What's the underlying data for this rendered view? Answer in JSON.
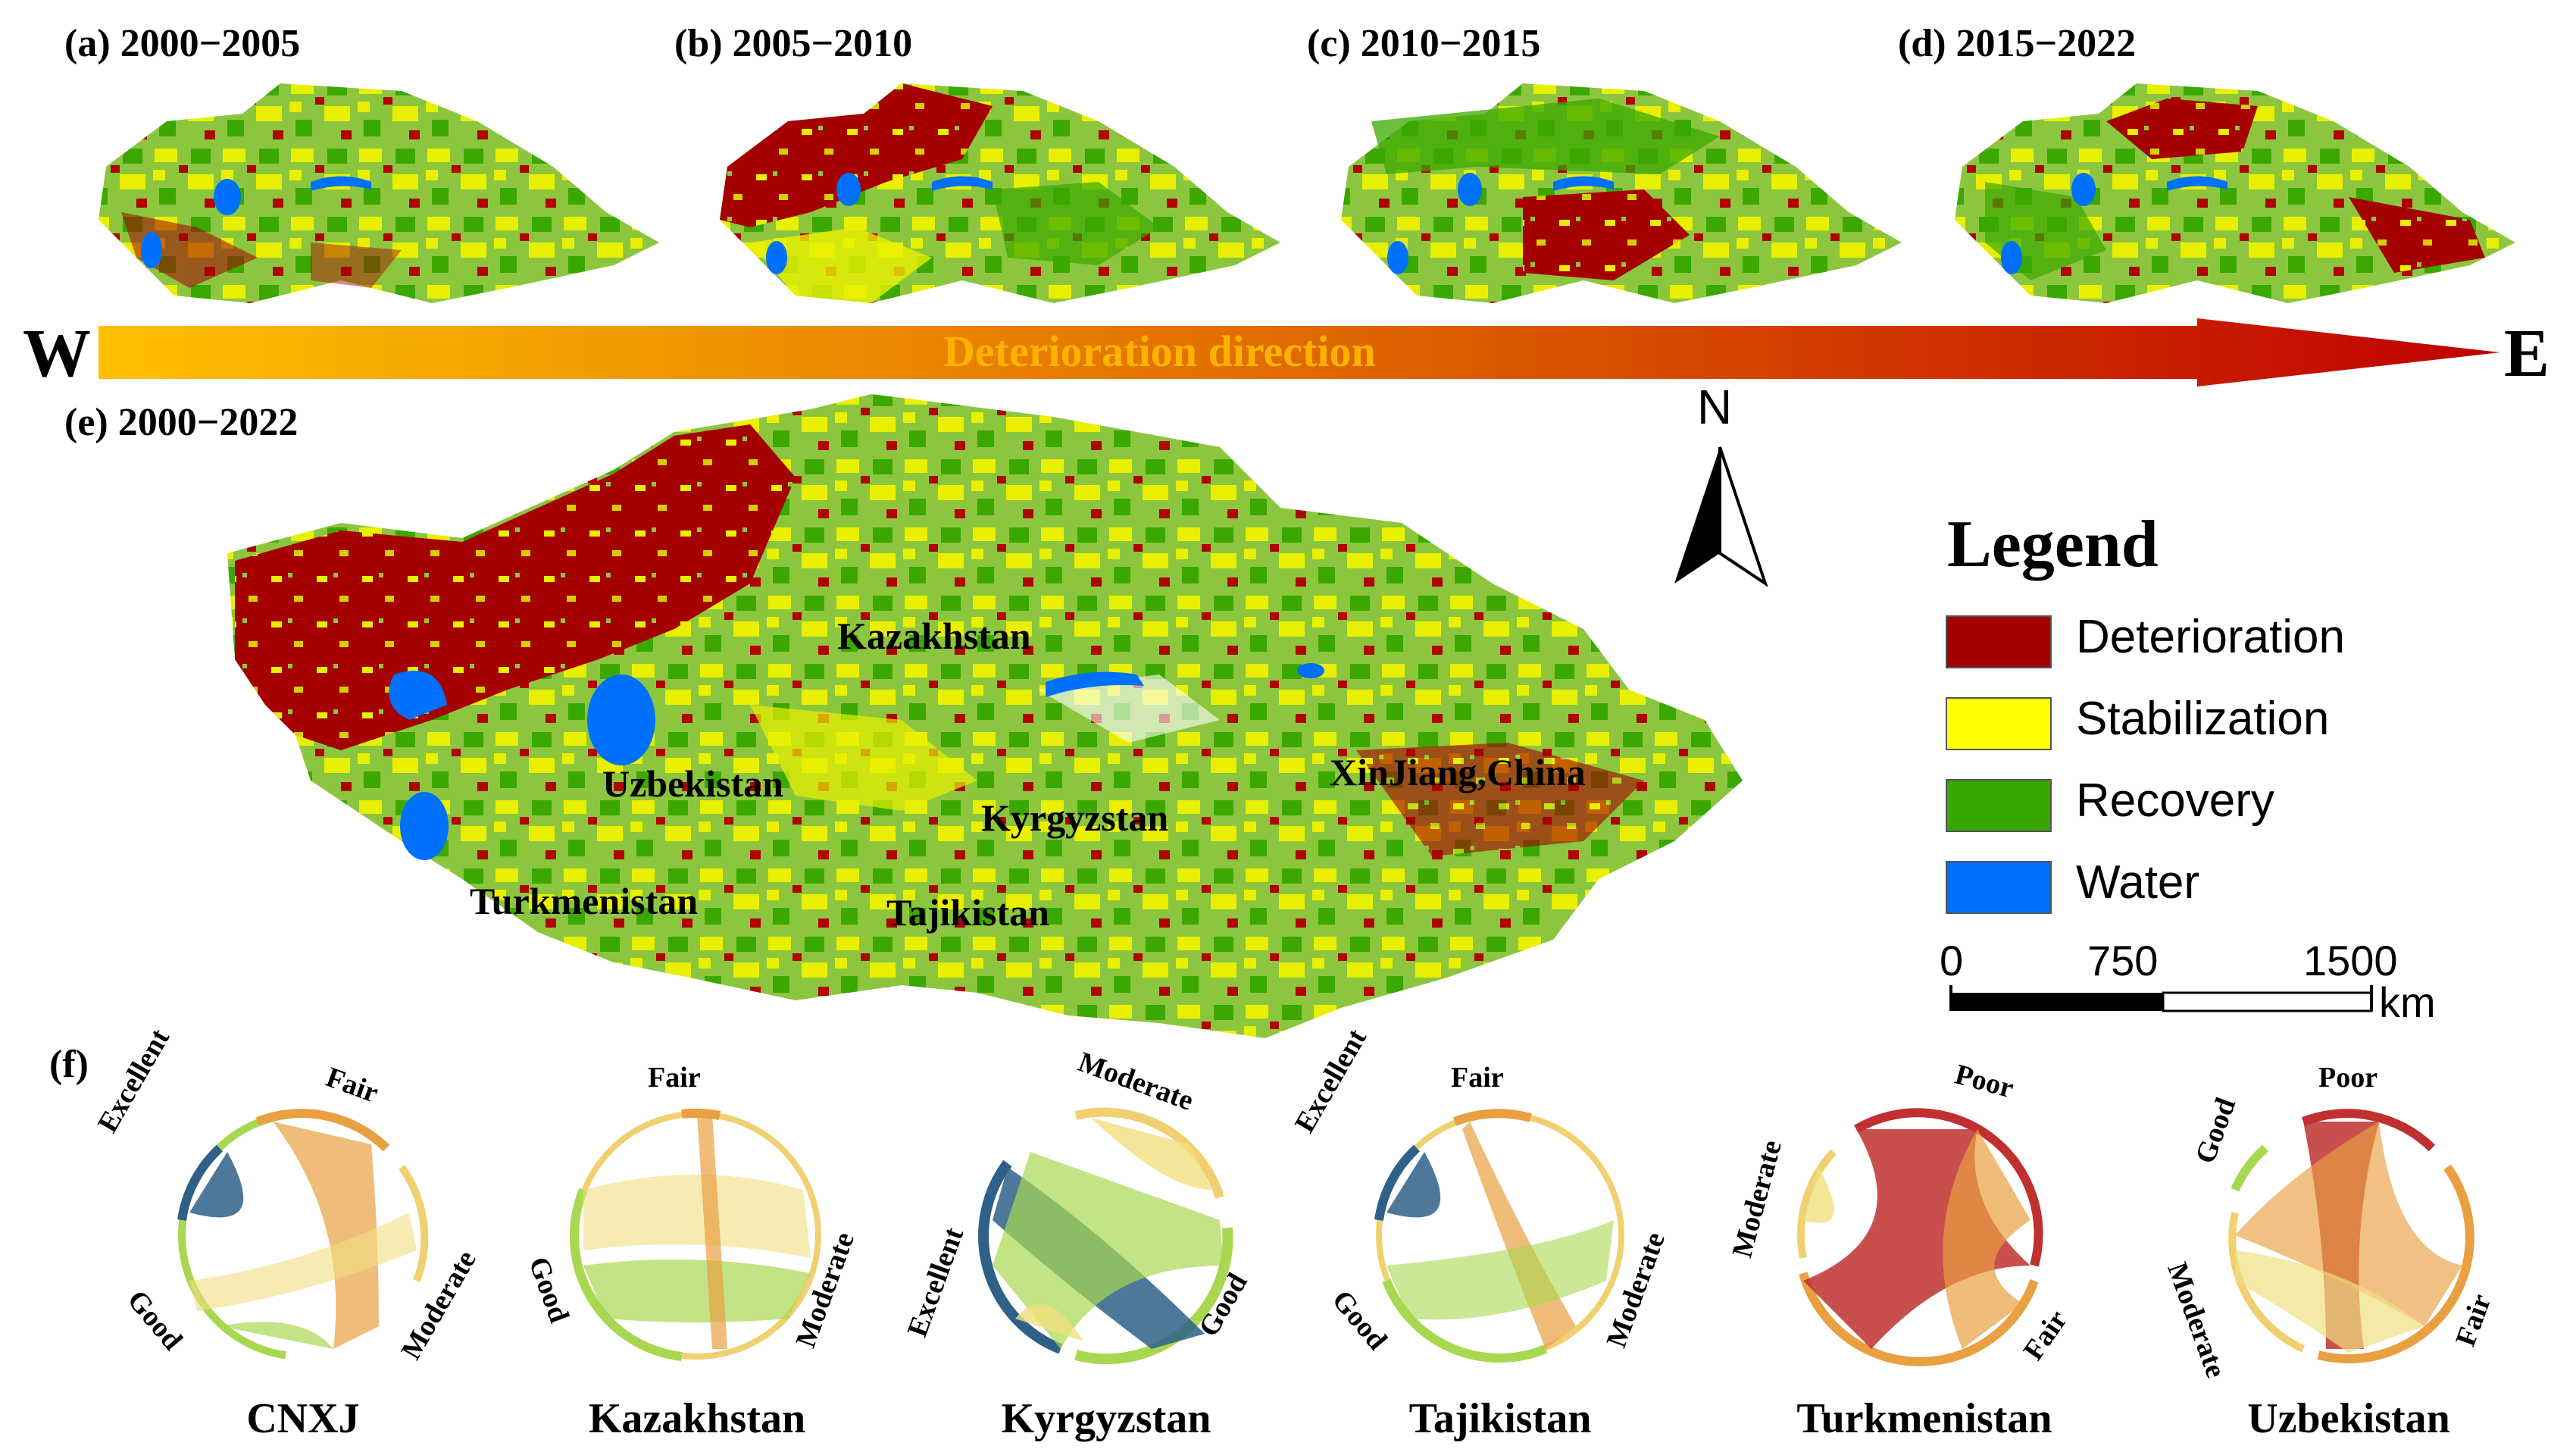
{
  "panels": {
    "a": "(a) 2000−2005",
    "b": "(b) 2005−2010",
    "c": "(c) 2010−2015",
    "d": "(d) 2015−2022",
    "e": "(e) 2000−2022",
    "f": "(f)"
  },
  "direction": {
    "west": "W",
    "east": "E",
    "label": "Deterioration direction"
  },
  "north": "N",
  "countries": {
    "kazakhstan": "Kazakhstan",
    "uzbekistan": "Uzbekistan",
    "kyrgyzstan": "Kyrgyzstan",
    "xinjiang": "XinJiang,China",
    "turkmenistan": "Turkmenistan",
    "tajikistan": "Tajikistan"
  },
  "legend": {
    "title": "Legend",
    "items": [
      {
        "label": "Deterioration",
        "color": "#A50000"
      },
      {
        "label": "Stabilization",
        "color": "#FFFF00"
      },
      {
        "label": "Recovery",
        "color": "#38A800"
      },
      {
        "label": "Water",
        "color": "#0070FF"
      }
    ]
  },
  "scale": {
    "ticks": [
      "0",
      "750",
      "1500"
    ],
    "unit": "km"
  },
  "chords": [
    {
      "name": "CNXJ",
      "labels": [
        "Excellent",
        "Fair",
        "Good",
        "Moderate"
      ]
    },
    {
      "name": "Kazakhstan",
      "labels": [
        "Fair",
        "Good",
        "Moderate"
      ]
    },
    {
      "name": "Kyrgyzstan",
      "labels": [
        "Moderate",
        "Excellent",
        "Good"
      ]
    },
    {
      "name": "Tajikistan",
      "labels": [
        "Excellent",
        "Fair",
        "Good",
        "Moderate"
      ]
    },
    {
      "name": "Turkmenistan",
      "labels": [
        "Poor",
        "Moderate",
        "Fair"
      ]
    },
    {
      "name": "Uzbekistan",
      "labels": [
        "Good",
        "Poor",
        "Moderate",
        "Fair"
      ]
    }
  ]
}
